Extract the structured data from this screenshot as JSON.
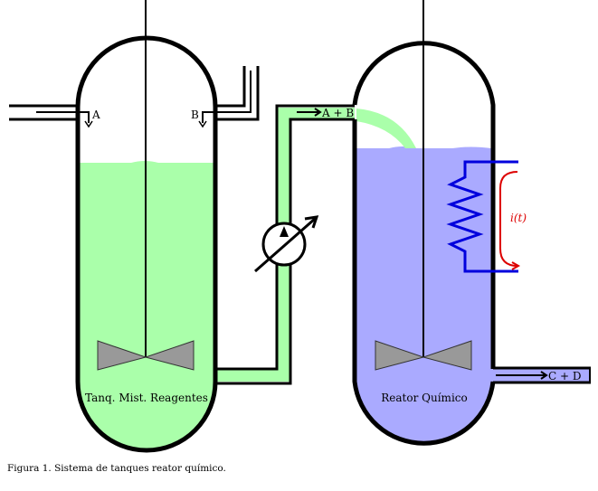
{
  "labels": {
    "inlet_a": "A",
    "inlet_b": "B",
    "transfer_flow": "A + B",
    "outlet_flow": "C + D",
    "current": "i(t)",
    "tank_mix": "Tanq. Mist. Reagentes",
    "tank_reactor": "Reator Químico"
  },
  "caption": "Figura 1. Sistema de tanques reator químico.",
  "colors": {
    "mix_liquid": "#aaffaa",
    "reactor_liquid": "#aaaaff",
    "heater_coil": "#0000dd",
    "current_arrow": "#dd0000",
    "impeller": "#999999",
    "walls": "#000000"
  },
  "icons": {
    "pump": "variable-pump-icon",
    "heater": "heating-coil-icon"
  }
}
